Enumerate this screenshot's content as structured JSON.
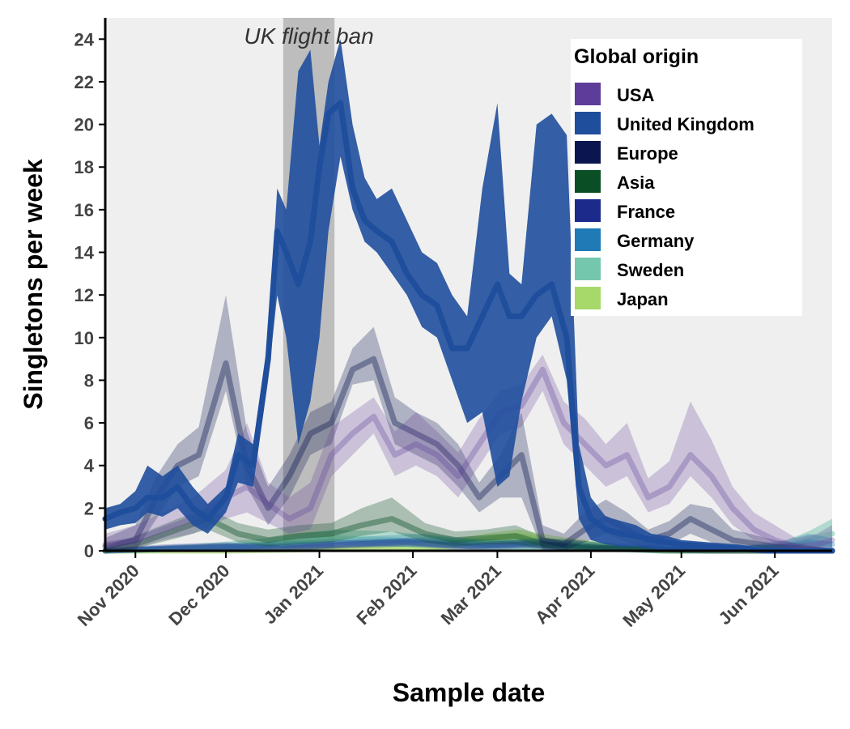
{
  "chart_data": {
    "type": "area",
    "xlabel": "Sample date",
    "ylabel": "Singletons per week",
    "x_range": [
      "2020-10-22",
      "2021-06-20"
    ],
    "ylim": [
      0,
      25
    ],
    "y_ticks": [
      0,
      2,
      4,
      6,
      8,
      10,
      12,
      14,
      16,
      18,
      20,
      22,
      24
    ],
    "x_ticks": [
      {
        "date": "2020-11-01",
        "label": "Nov 2020"
      },
      {
        "date": "2020-12-01",
        "label": "Dec 2020"
      },
      {
        "date": "2021-01-01",
        "label": "Jan 2021"
      },
      {
        "date": "2021-02-01",
        "label": "Feb 2021"
      },
      {
        "date": "2021-03-01",
        "label": "Mar 2021"
      },
      {
        "date": "2021-04-01",
        "label": "Apr 2021"
      },
      {
        "date": "2021-05-01",
        "label": "May 2021"
      },
      {
        "date": "2021-06-01",
        "label": "Jun 2021"
      }
    ],
    "background_color": "#efefef",
    "annotation": {
      "label": "UK flight ban",
      "start": "2020-12-20",
      "end": "2021-01-06",
      "color": "#bdbdbd"
    },
    "legend": {
      "title": "Global origin",
      "position": "top-right"
    },
    "series": [
      {
        "name": "USA",
        "color": "#5e3c99",
        "band_opacity": 0.25,
        "line_opacity": 0.3,
        "in_legend": true,
        "x": [
          "2020-10-22",
          "2020-11-01",
          "2020-11-10",
          "2020-11-20",
          "2020-12-01",
          "2020-12-08",
          "2020-12-15",
          "2020-12-22",
          "2020-12-29",
          "2021-01-05",
          "2021-01-12",
          "2021-01-19",
          "2021-01-26",
          "2021-02-02",
          "2021-02-09",
          "2021-02-16",
          "2021-02-23",
          "2021-03-02",
          "2021-03-09",
          "2021-03-16",
          "2021-03-23",
          "2021-03-30",
          "2021-04-06",
          "2021-04-13",
          "2021-04-20",
          "2021-04-27",
          "2021-05-04",
          "2021-05-11",
          "2021-05-18",
          "2021-05-25",
          "2021-06-01",
          "2021-06-08",
          "2021-06-15",
          "2021-06-20"
        ],
        "y": [
          0.3,
          0.5,
          1.0,
          1.5,
          2.5,
          3.0,
          2.2,
          1.5,
          2.0,
          4.5,
          5.5,
          6.3,
          4.5,
          5.0,
          4.5,
          3.5,
          5.0,
          6.5,
          6.8,
          8.5,
          6.0,
          5.0,
          4.0,
          4.5,
          2.5,
          3.0,
          4.5,
          3.5,
          2.0,
          1.0,
          0.5,
          0.2,
          0.3,
          0.5
        ],
        "lower": [
          0.0,
          0.1,
          0.5,
          0.8,
          1.5,
          1.8,
          1.3,
          0.8,
          1.0,
          3.5,
          4.5,
          5.5,
          3.5,
          4.0,
          3.5,
          2.5,
          4.0,
          5.5,
          5.8,
          7.5,
          5.0,
          4.0,
          3.0,
          3.5,
          1.8,
          2.2,
          3.5,
          2.5,
          1.2,
          0.5,
          0.2,
          0.0,
          0.0,
          0.1
        ],
        "upper": [
          0.8,
          1.2,
          1.8,
          2.5,
          3.8,
          6.0,
          3.2,
          2.5,
          3.2,
          5.8,
          6.5,
          7.2,
          5.6,
          6.5,
          5.6,
          4.6,
          6.2,
          7.5,
          7.8,
          9.2,
          7.0,
          6.2,
          5.0,
          6.0,
          3.4,
          4.2,
          7.0,
          5.2,
          3.0,
          1.8,
          1.2,
          0.6,
          0.8,
          1.2
        ]
      },
      {
        "name": "United Kingdom",
        "color": "#1f4e9c",
        "band_opacity": 0.9,
        "line_opacity": 1.0,
        "in_legend": true,
        "x": [
          "2020-10-22",
          "2020-10-27",
          "2020-11-01",
          "2020-11-05",
          "2020-11-10",
          "2020-11-15",
          "2020-11-20",
          "2020-11-25",
          "2020-12-01",
          "2020-12-05",
          "2020-12-10",
          "2020-12-15",
          "2020-12-18",
          "2020-12-21",
          "2020-12-25",
          "2020-12-29",
          "2021-01-01",
          "2021-01-04",
          "2021-01-08",
          "2021-01-12",
          "2021-01-16",
          "2021-01-20",
          "2021-01-25",
          "2021-01-30",
          "2021-02-04",
          "2021-02-09",
          "2021-02-14",
          "2021-02-19",
          "2021-02-24",
          "2021-03-01",
          "2021-03-05",
          "2021-03-09",
          "2021-03-14",
          "2021-03-19",
          "2021-03-24",
          "2021-03-28",
          "2021-04-01",
          "2021-04-06",
          "2021-04-11",
          "2021-04-16",
          "2021-04-21",
          "2021-04-26",
          "2021-05-01",
          "2021-05-10",
          "2021-05-20",
          "2021-05-30",
          "2021-06-10",
          "2021-06-20"
        ],
        "y": [
          1.5,
          1.8,
          2.0,
          2.5,
          2.5,
          3.0,
          2.0,
          1.5,
          2.5,
          4.5,
          4.0,
          9.0,
          15.0,
          14.0,
          12.5,
          14.5,
          18.0,
          20.5,
          21.0,
          17.0,
          15.5,
          15.0,
          14.5,
          13.0,
          12.0,
          11.5,
          9.5,
          9.5,
          11.0,
          12.5,
          11.0,
          11.0,
          12.0,
          12.5,
          10.0,
          3.0,
          1.5,
          1.0,
          0.8,
          0.7,
          0.5,
          0.4,
          0.3,
          0.2,
          0.1,
          0.0,
          0.0,
          0.0
        ],
        "lower": [
          1.0,
          1.2,
          1.3,
          1.8,
          1.6,
          2.0,
          1.2,
          0.8,
          1.8,
          3.2,
          3.0,
          8.0,
          12.0,
          10.0,
          5.0,
          7.0,
          10.0,
          15.0,
          18.5,
          16.0,
          14.5,
          14.0,
          13.0,
          12.0,
          10.5,
          10.0,
          8.0,
          6.0,
          6.5,
          3.0,
          3.5,
          7.0,
          10.0,
          11.0,
          8.0,
          1.5,
          0.5,
          0.3,
          0.2,
          0.2,
          0.1,
          0.0,
          0.0,
          0.0,
          0.0,
          0.0,
          0.0,
          0.0
        ],
        "upper": [
          2.0,
          2.2,
          2.8,
          4.0,
          3.5,
          4.0,
          3.0,
          2.2,
          3.0,
          5.5,
          5.0,
          10.0,
          17.0,
          16.0,
          22.5,
          23.5,
          19.0,
          22.0,
          24.0,
          20.0,
          17.5,
          16.5,
          17.0,
          15.5,
          14.0,
          13.5,
          12.0,
          11.0,
          17.0,
          21.0,
          13.0,
          12.5,
          20.0,
          20.5,
          19.5,
          5.0,
          2.5,
          1.6,
          1.4,
          1.2,
          0.8,
          0.7,
          0.5,
          0.4,
          0.3,
          0.1,
          0.1,
          0.0
        ]
      },
      {
        "name": "Europe",
        "color": "#0b1650",
        "band_opacity": 0.28,
        "line_opacity": 0.38,
        "in_legend": true,
        "x": [
          "2020-10-22",
          "2020-11-01",
          "2020-11-08",
          "2020-11-15",
          "2020-11-22",
          "2020-12-01",
          "2020-12-08",
          "2020-12-15",
          "2020-12-22",
          "2020-12-29",
          "2021-01-05",
          "2021-01-12",
          "2021-01-19",
          "2021-01-26",
          "2021-02-02",
          "2021-02-09",
          "2021-02-16",
          "2021-02-23",
          "2021-03-02",
          "2021-03-09",
          "2021-03-16",
          "2021-03-23",
          "2021-03-30",
          "2021-04-06",
          "2021-04-13",
          "2021-04-20",
          "2021-04-27",
          "2021-05-04",
          "2021-05-11",
          "2021-05-18",
          "2021-06-01",
          "2021-06-20"
        ],
        "y": [
          0.2,
          0.5,
          2.5,
          4.0,
          4.5,
          8.8,
          4.0,
          2.0,
          3.5,
          5.5,
          6.0,
          8.5,
          9.0,
          6.0,
          5.5,
          5.0,
          4.0,
          2.5,
          3.5,
          4.5,
          0.5,
          0.3,
          1.0,
          1.5,
          1.0,
          0.5,
          0.8,
          1.5,
          1.0,
          0.5,
          0.2,
          0.0
        ],
        "lower": [
          0.0,
          0.0,
          1.5,
          3.0,
          3.5,
          7.5,
          3.0,
          1.2,
          2.5,
          4.5,
          5.0,
          7.8,
          8.0,
          5.0,
          4.5,
          4.0,
          3.0,
          1.8,
          2.5,
          2.5,
          0.0,
          0.0,
          0.4,
          0.8,
          0.4,
          0.1,
          0.3,
          0.8,
          0.4,
          0.1,
          0.0,
          0.0
        ],
        "upper": [
          0.6,
          1.2,
          3.5,
          5.0,
          5.8,
          12.0,
          5.6,
          3.0,
          4.5,
          6.5,
          7.0,
          9.5,
          10.5,
          7.2,
          6.5,
          6.0,
          5.0,
          3.2,
          4.5,
          6.5,
          1.2,
          0.8,
          1.8,
          2.4,
          1.8,
          1.0,
          1.4,
          2.2,
          2.0,
          1.0,
          0.5,
          0.1
        ]
      },
      {
        "name": "Asia",
        "color": "#0a4e25",
        "band_opacity": 0.3,
        "line_opacity": 0.4,
        "in_legend": true,
        "x": [
          "2020-10-22",
          "2020-11-01",
          "2020-11-15",
          "2020-11-25",
          "2020-12-05",
          "2020-12-15",
          "2020-12-25",
          "2021-01-05",
          "2021-01-15",
          "2021-01-25",
          "2021-02-05",
          "2021-02-15",
          "2021-02-25",
          "2021-03-07",
          "2021-03-17",
          "2021-03-27",
          "2021-04-10",
          "2021-04-25",
          "2021-05-10",
          "2021-06-20"
        ],
        "y": [
          0.0,
          0.3,
          1.0,
          1.5,
          0.8,
          0.5,
          0.7,
          0.8,
          1.2,
          1.5,
          0.8,
          0.5,
          0.6,
          0.7,
          0.3,
          0.2,
          0.1,
          0.0,
          0.0,
          0.0
        ],
        "lower": [
          0.0,
          0.1,
          0.6,
          1.0,
          0.4,
          0.2,
          0.3,
          0.4,
          0.7,
          0.9,
          0.4,
          0.2,
          0.3,
          0.3,
          0.1,
          0.0,
          0.0,
          0.0,
          0.0,
          0.0
        ],
        "upper": [
          0.2,
          0.7,
          1.5,
          2.0,
          1.3,
          1.0,
          1.2,
          1.3,
          2.0,
          2.5,
          1.3,
          0.9,
          1.0,
          1.2,
          0.6,
          0.5,
          0.3,
          0.1,
          0.1,
          0.0
        ]
      },
      {
        "name": "France",
        "color": "#1c2a8c",
        "band_opacity": 0.25,
        "line_opacity": 0.35,
        "in_legend": true,
        "x": [
          "2020-10-22",
          "2020-11-10",
          "2020-12-01",
          "2020-12-20",
          "2021-01-10",
          "2021-01-30",
          "2021-02-20",
          "2021-03-10",
          "2021-04-01",
          "2021-04-20",
          "2021-05-10",
          "2021-06-20"
        ],
        "y": [
          0.0,
          0.1,
          0.2,
          0.1,
          0.3,
          0.4,
          0.2,
          0.3,
          0.1,
          0.1,
          0.0,
          0.0
        ],
        "lower": [
          0.0,
          0.0,
          0.0,
          0.0,
          0.1,
          0.2,
          0.0,
          0.1,
          0.0,
          0.0,
          0.0,
          0.0
        ],
        "upper": [
          0.1,
          0.3,
          0.4,
          0.3,
          0.5,
          0.6,
          0.4,
          0.5,
          0.3,
          0.2,
          0.1,
          0.1
        ]
      },
      {
        "name": "Germany",
        "color": "#1f7ab5",
        "band_opacity": 0.28,
        "line_opacity": 0.35,
        "in_legend": true,
        "x": [
          "2020-10-22",
          "2020-11-15",
          "2020-12-10",
          "2021-01-01",
          "2021-01-20",
          "2021-02-05",
          "2021-02-25",
          "2021-03-15",
          "2021-04-05",
          "2021-04-25",
          "2021-05-20",
          "2021-06-05",
          "2021-06-12",
          "2021-06-20"
        ],
        "y": [
          0.0,
          0.1,
          0.2,
          0.3,
          0.4,
          0.5,
          0.3,
          0.4,
          0.2,
          0.1,
          0.1,
          0.2,
          0.4,
          0.3
        ],
        "lower": [
          0.0,
          0.0,
          0.0,
          0.1,
          0.2,
          0.2,
          0.1,
          0.2,
          0.0,
          0.0,
          0.0,
          0.0,
          0.1,
          0.0
        ],
        "upper": [
          0.1,
          0.3,
          0.4,
          0.5,
          0.7,
          0.8,
          0.5,
          0.6,
          0.4,
          0.3,
          0.2,
          0.5,
          0.8,
          0.6
        ]
      },
      {
        "name": "Sweden",
        "color": "#74c6ad",
        "band_opacity": 0.5,
        "line_opacity": 0.55,
        "in_legend": true,
        "x": [
          "2020-10-22",
          "2020-11-20",
          "2020-12-15",
          "2021-01-05",
          "2021-01-25",
          "2021-02-15",
          "2021-03-05",
          "2021-04-01",
          "2021-05-01",
          "2021-06-01",
          "2021-06-12",
          "2021-06-20"
        ],
        "y": [
          0.0,
          0.1,
          0.3,
          0.6,
          0.5,
          0.3,
          0.2,
          0.1,
          0.0,
          0.1,
          0.5,
          0.8
        ],
        "lower": [
          0.0,
          0.0,
          0.1,
          0.3,
          0.2,
          0.1,
          0.0,
          0.0,
          0.0,
          0.0,
          0.1,
          0.2
        ],
        "upper": [
          0.1,
          0.3,
          0.6,
          1.0,
          0.9,
          0.6,
          0.5,
          0.3,
          0.1,
          0.3,
          0.9,
          1.5
        ]
      },
      {
        "name": "Japan",
        "color": "#a6d96a",
        "band_opacity": 0.55,
        "line_opacity": 0.6,
        "in_legend": true,
        "x": [
          "2020-10-22",
          "2020-12-01",
          "2021-01-10",
          "2021-02-10",
          "2021-02-25",
          "2021-03-08",
          "2021-03-20",
          "2021-04-10",
          "2021-05-10",
          "2021-06-20"
        ],
        "y": [
          0.0,
          0.0,
          0.1,
          0.2,
          0.5,
          0.7,
          0.4,
          0.1,
          0.0,
          0.0
        ],
        "lower": [
          0.0,
          0.0,
          0.0,
          0.0,
          0.2,
          0.3,
          0.1,
          0.0,
          0.0,
          0.0
        ],
        "upper": [
          0.1,
          0.1,
          0.2,
          0.4,
          0.8,
          1.0,
          0.7,
          0.3,
          0.1,
          0.1
        ]
      }
    ]
  }
}
